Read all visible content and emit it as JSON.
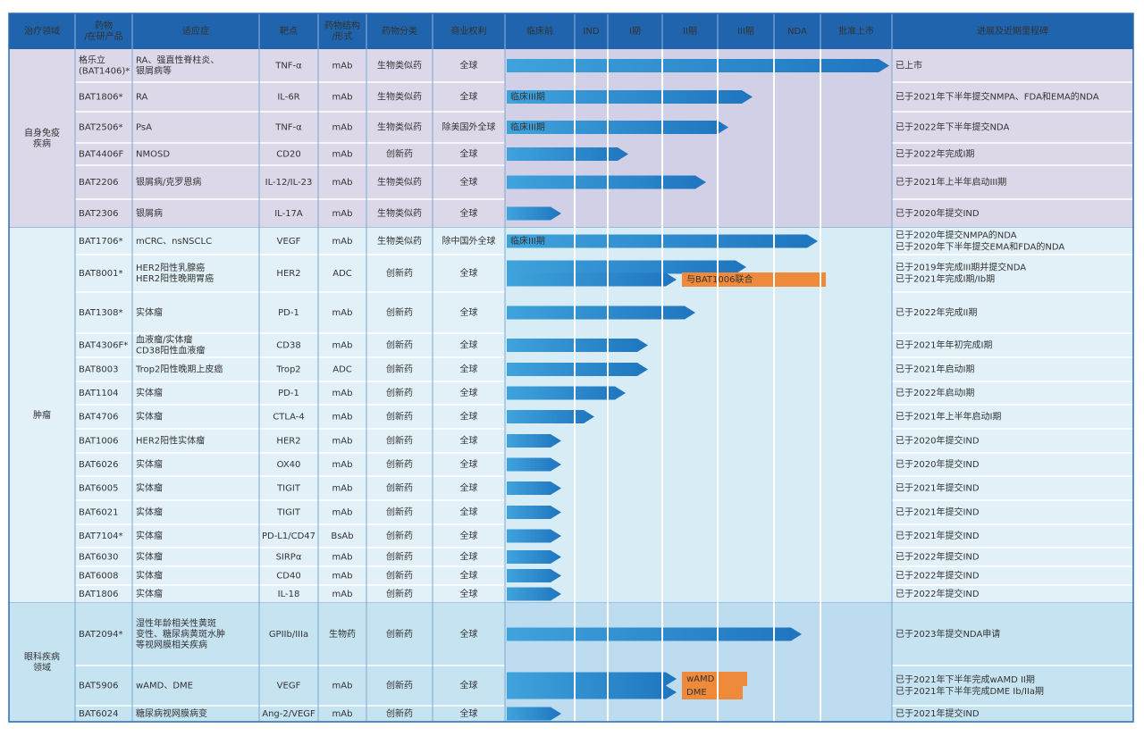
{
  "header": [
    "治疗领域",
    "药物\n/在研产品",
    "适应症",
    "靶点",
    "药物结构\n/形式",
    "药物分类",
    "商业权利",
    "临床前",
    "IND",
    "I期",
    "II期",
    "III期",
    "NDA",
    "批准上市",
    "进展及近期里程碑"
  ],
  "groups": [
    {
      "name": "自身免疫\n疾病",
      "rows": [
        {
          "cells": [
            "格乐立\n(BAT1406)*",
            "RA、强直性脊柱炎、\n银屑病等",
            "TNF-α",
            "mAb",
            "生物类似药",
            "全球"
          ],
          "notes": [
            "已上市"
          ]
        },
        {
          "cells": [
            "BAT1806*",
            "RA",
            "IL-6R",
            "mAb",
            "生物类似药",
            "全球"
          ],
          "bar_labels": [
            "临床III期"
          ],
          "notes": [
            "已于2021年下半年提交NMPA、FDA和EMA的NDA"
          ]
        },
        {
          "cells": [
            "BAT2506*",
            "PsA",
            "TNF-α",
            "mAb",
            "生物类似药",
            "除美国外全球"
          ],
          "bar_labels": [
            "临床III期"
          ],
          "notes": [
            "已于2022年下半年提交NDA"
          ]
        },
        {
          "cells": [
            "BAT4406F",
            "NMOSD",
            "CD20",
            "mAb",
            "创新药",
            "全球"
          ],
          "notes": [
            "已于2022年完成I期"
          ]
        },
        {
          "cells": [
            "BAT2206",
            "银屑病/克罗恩病",
            "IL-12/IL-23",
            "mAb",
            "生物类似药",
            "全球"
          ],
          "notes": [
            "已于2021年上半年启动III期"
          ]
        },
        {
          "cells": [
            "BAT2306",
            "银屑病",
            "IL-17A",
            "mAb",
            "生物类似药",
            "全球"
          ],
          "notes": [
            "已于2020年提交IND"
          ]
        }
      ]
    },
    {
      "name": "肿瘤",
      "rows": [
        {
          "cells": [
            "BAT1706*",
            "mCRC、nsNSCLC",
            "VEGF",
            "mAb",
            "生物类似药",
            "除中国外全球"
          ],
          "bar_labels": [
            "临床III期"
          ],
          "notes": [
            "已于2020年提交NMPA的NDA",
            "已于2020年下半年提交EMA和FDA的NDA"
          ]
        },
        {
          "cells": [
            "BAT8001*",
            "HER2阳性乳腺癌\nHER2阳性晚期胃癌",
            "HER2",
            "ADC",
            "创新药",
            "全球"
          ],
          "tags": [
            "与BAT1006联合"
          ],
          "notes": [
            "已于2019年完成III期并提交NDA",
            "已于2021年完成I期/Ib期"
          ]
        },
        {
          "cells": [
            "BAT1308*",
            "实体瘤",
            "PD-1",
            "mAb",
            "创新药",
            "全球"
          ],
          "notes": [
            "已于2022年完成II期"
          ]
        },
        {
          "cells": [
            "BAT4306F*",
            "血液瘤/实体瘤\nCD38阳性血液瘤",
            "CD38",
            "mAb",
            "创新药",
            "全球"
          ],
          "notes": [
            "已于2021年年初完成I期"
          ]
        },
        {
          "cells": [
            "BAT8003",
            "Trop2阳性晚期上皮癌",
            "Trop2",
            "ADC",
            "创新药",
            "全球"
          ],
          "notes": [
            "已于2021年启动I期"
          ]
        },
        {
          "cells": [
            "BAT1104",
            "实体瘤",
            "PD-1",
            "mAb",
            "创新药",
            "全球"
          ],
          "notes": [
            "已于2022年启动I期"
          ]
        },
        {
          "cells": [
            "BAT4706",
            "实体瘤",
            "CTLA-4",
            "mAb",
            "创新药",
            "全球"
          ],
          "notes": [
            "已于2021年上半年启动I期"
          ]
        },
        {
          "cells": [
            "BAT1006",
            "HER2阳性实体瘤",
            "HER2",
            "mAb",
            "创新药",
            "全球"
          ],
          "notes": [
            "已于2020年提交IND"
          ]
        },
        {
          "cells": [
            "BAT6026",
            "实体瘤",
            "OX40",
            "mAb",
            "创新药",
            "全球"
          ],
          "notes": [
            "已于2020年提交IND"
          ]
        },
        {
          "cells": [
            "BAT6005",
            "实体瘤",
            "TIGIT",
            "mAb",
            "创新药",
            "全球"
          ],
          "notes": [
            "已于2021年提交IND"
          ]
        },
        {
          "cells": [
            "BAT6021",
            "实体瘤",
            "TIGIT",
            "mAb",
            "创新药",
            "全球"
          ],
          "notes": [
            "已于2021年提交IND"
          ]
        },
        {
          "cells": [
            "BAT7104*",
            "实体瘤",
            "PD-L1/CD47",
            "BsAb",
            "创新药",
            "全球"
          ],
          "notes": [
            "已于2021年提交IND"
          ]
        },
        {
          "cells": [
            "BAT6030",
            "实体瘤",
            "SIRPα",
            "mAb",
            "创新药",
            "全球"
          ],
          "notes": [
            "已于2022年提交IND"
          ]
        },
        {
          "cells": [
            "BAT6008",
            "实体瘤",
            "CD40",
            "mAb",
            "创新药",
            "全球"
          ],
          "notes": [
            "已于2022年提交IND"
          ]
        },
        {
          "cells": [
            "BAT1806",
            "实体瘤",
            "IL-18",
            "mAb",
            "创新药",
            "全球"
          ],
          "notes": [
            "已于2022年提交IND"
          ]
        }
      ]
    },
    {
      "name": "眼科疾病\n领域",
      "rows": [
        {
          "cells": [
            "BAT2094*",
            "湿性年龄相关性黄斑\n变性、糖尿病黄斑水肿\n等视网膜相关疾病",
            "GPIIb/IIIa",
            "生物药",
            "创新药",
            "全球"
          ],
          "notes": [
            "已于2023年提交NDA申请"
          ]
        },
        {
          "cells": [
            "BAT5906",
            "wAMD、DME",
            "VEGF",
            "mAb",
            "创新药",
            "全球"
          ],
          "tags": [
            "wAMD",
            "DME"
          ],
          "notes": [
            "已于2021年下半年完成wAMD II期",
            "已于2021年下半年完成DME Ib/IIa期"
          ]
        },
        {
          "cells": [
            "BAT6024",
            "糖尿病视网膜病变",
            "Ang-2/VEGF",
            "mAb",
            "创新药",
            "全球"
          ],
          "notes": [
            "已于2021年提交IND"
          ]
        }
      ]
    }
  ]
}
